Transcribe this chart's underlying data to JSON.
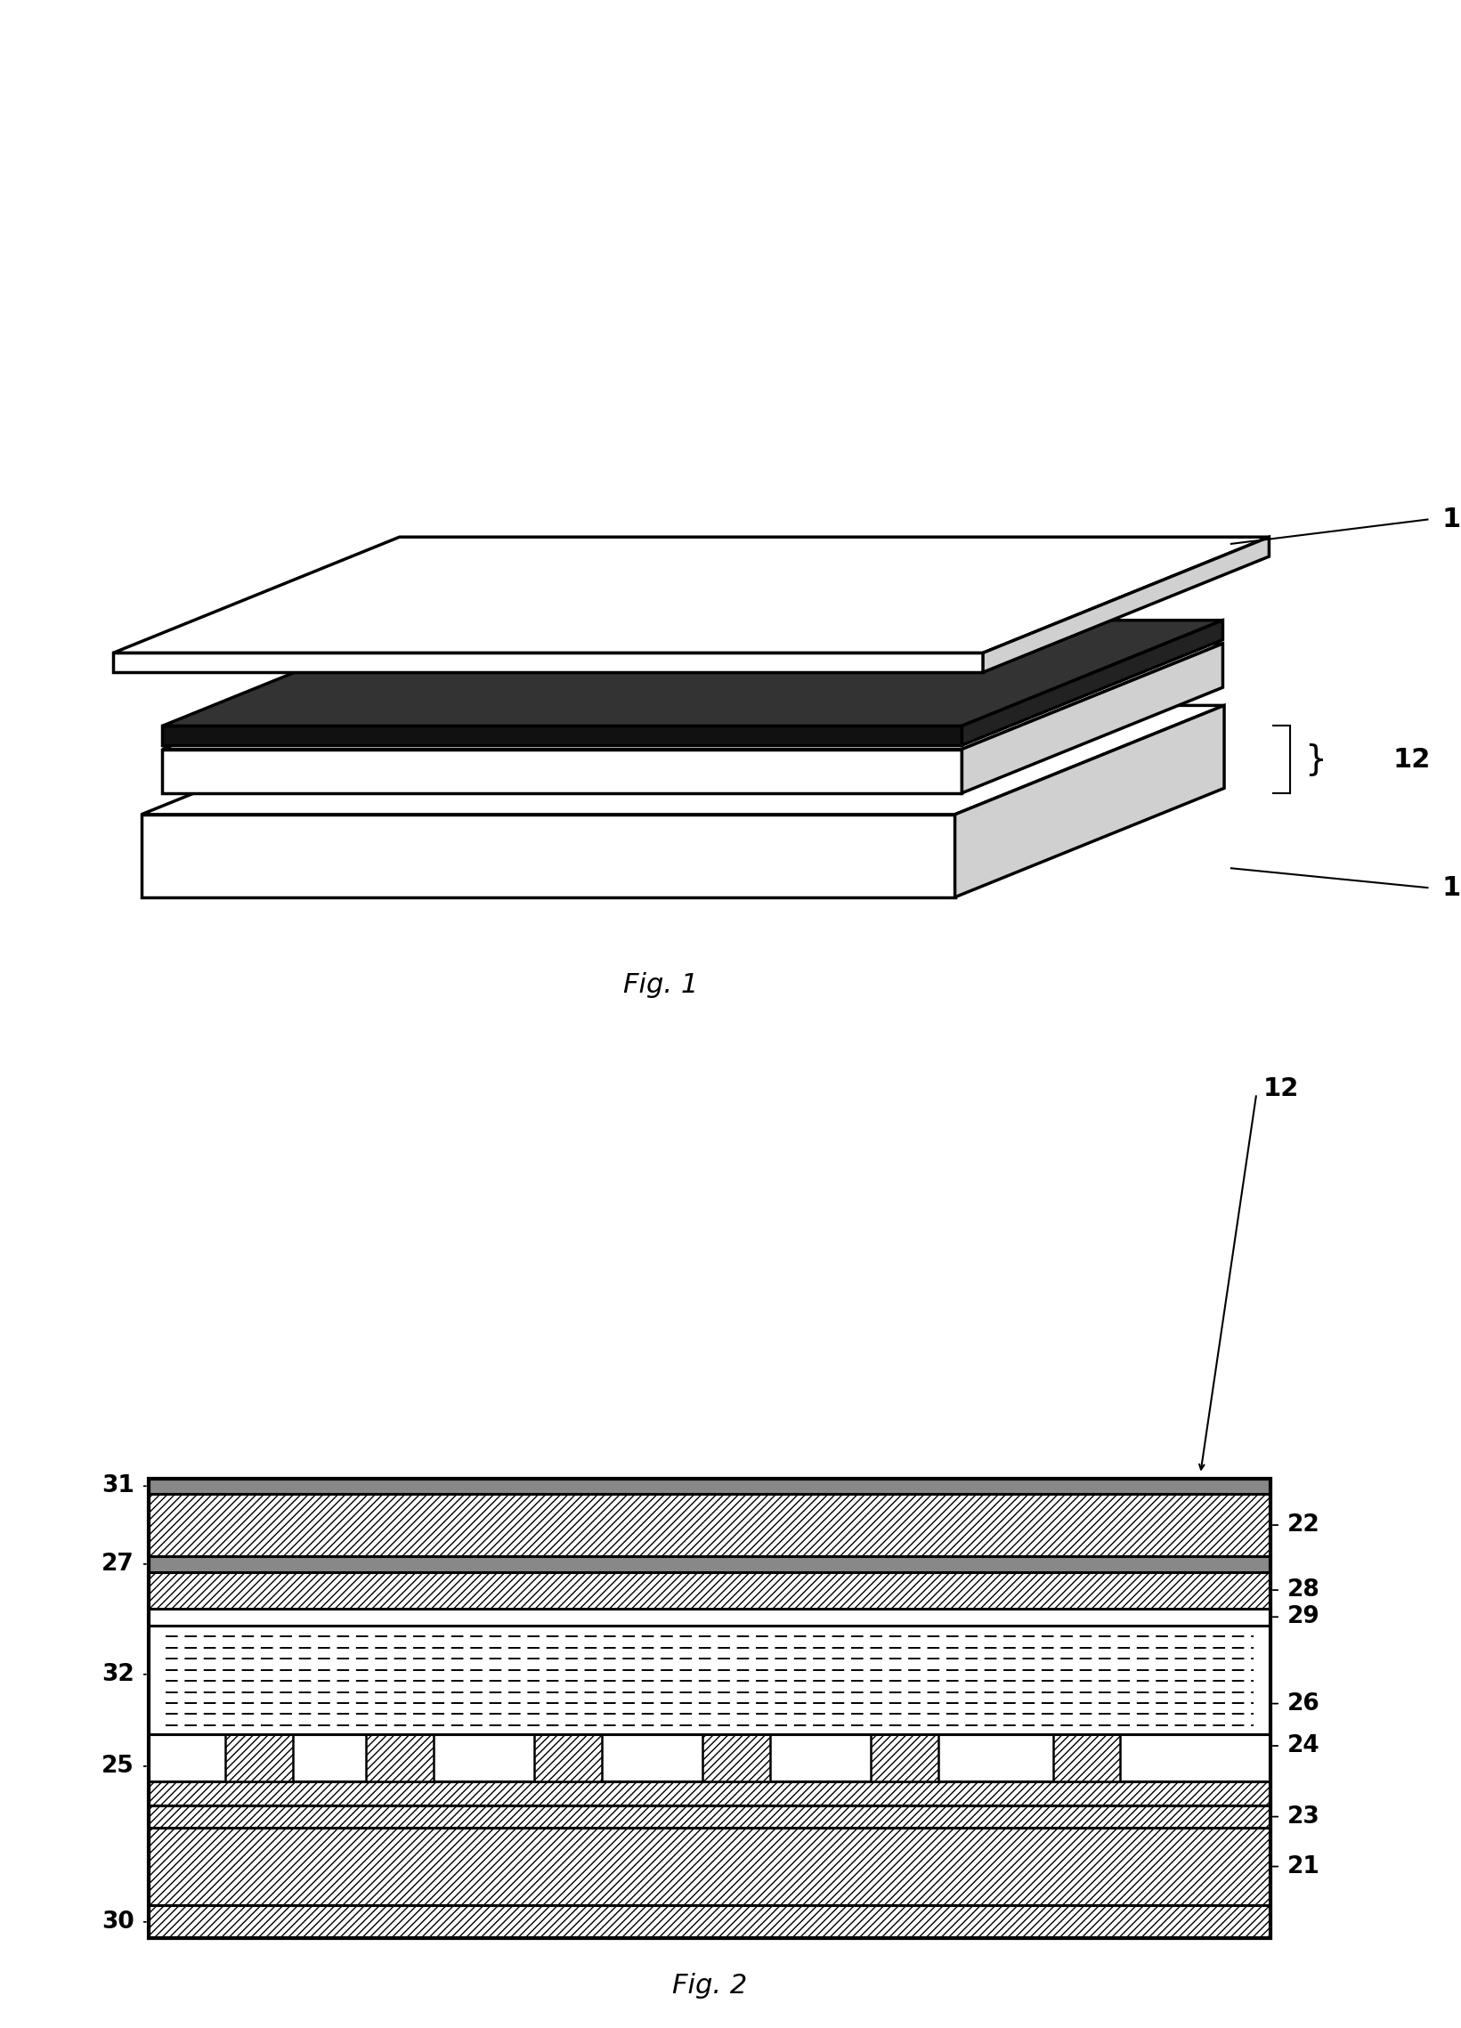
{
  "fig1": {
    "title": "Fig. 1"
  },
  "fig2": {
    "title": "Fig. 2",
    "label": "12"
  },
  "bg_color": "#ffffff",
  "line_color": "#000000",
  "text_color": "#000000",
  "font_size": 18
}
